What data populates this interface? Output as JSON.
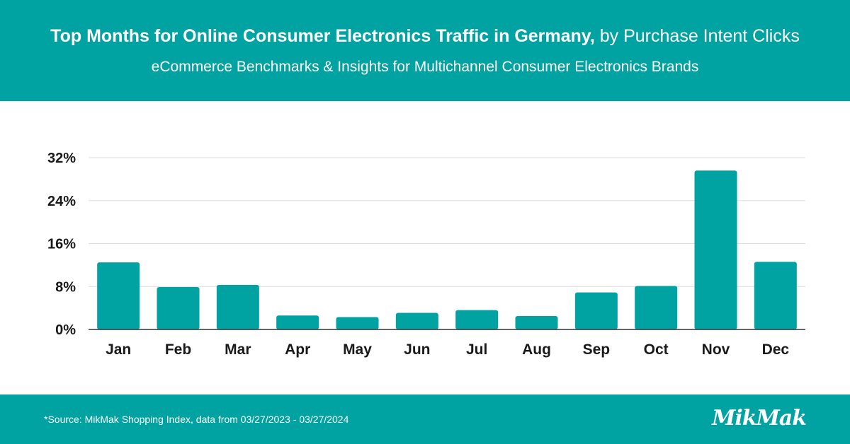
{
  "header": {
    "title_bold": "Top Months for Online Consumer Electronics Traffic in Germany,",
    "title_rest": " by Purchase Intent Clicks",
    "subtitle": "eCommerce Benchmarks & Insights for Multichannel Consumer Electronics Brands"
  },
  "chart_data": {
    "type": "bar",
    "categories": [
      "Jan",
      "Feb",
      "Mar",
      "Apr",
      "May",
      "Jun",
      "Jul",
      "Aug",
      "Sep",
      "Oct",
      "Nov",
      "Dec"
    ],
    "values": [
      12.5,
      7.9,
      8.3,
      2.6,
      2.3,
      3.1,
      3.6,
      2.5,
      6.9,
      8.1,
      29.6,
      12.6
    ],
    "yticks": [
      "0%",
      "8%",
      "16%",
      "24%",
      "32%"
    ],
    "ytick_values": [
      0,
      8,
      16,
      24,
      32
    ],
    "ylim": [
      0,
      32
    ],
    "unit": "%",
    "grid": true,
    "bar_color": "#00a3a1"
  },
  "footer": {
    "source": "*Source: MikMak Shopping Index, data from  03/27/2023 - 03/27/2024",
    "logo": "MikMak"
  }
}
